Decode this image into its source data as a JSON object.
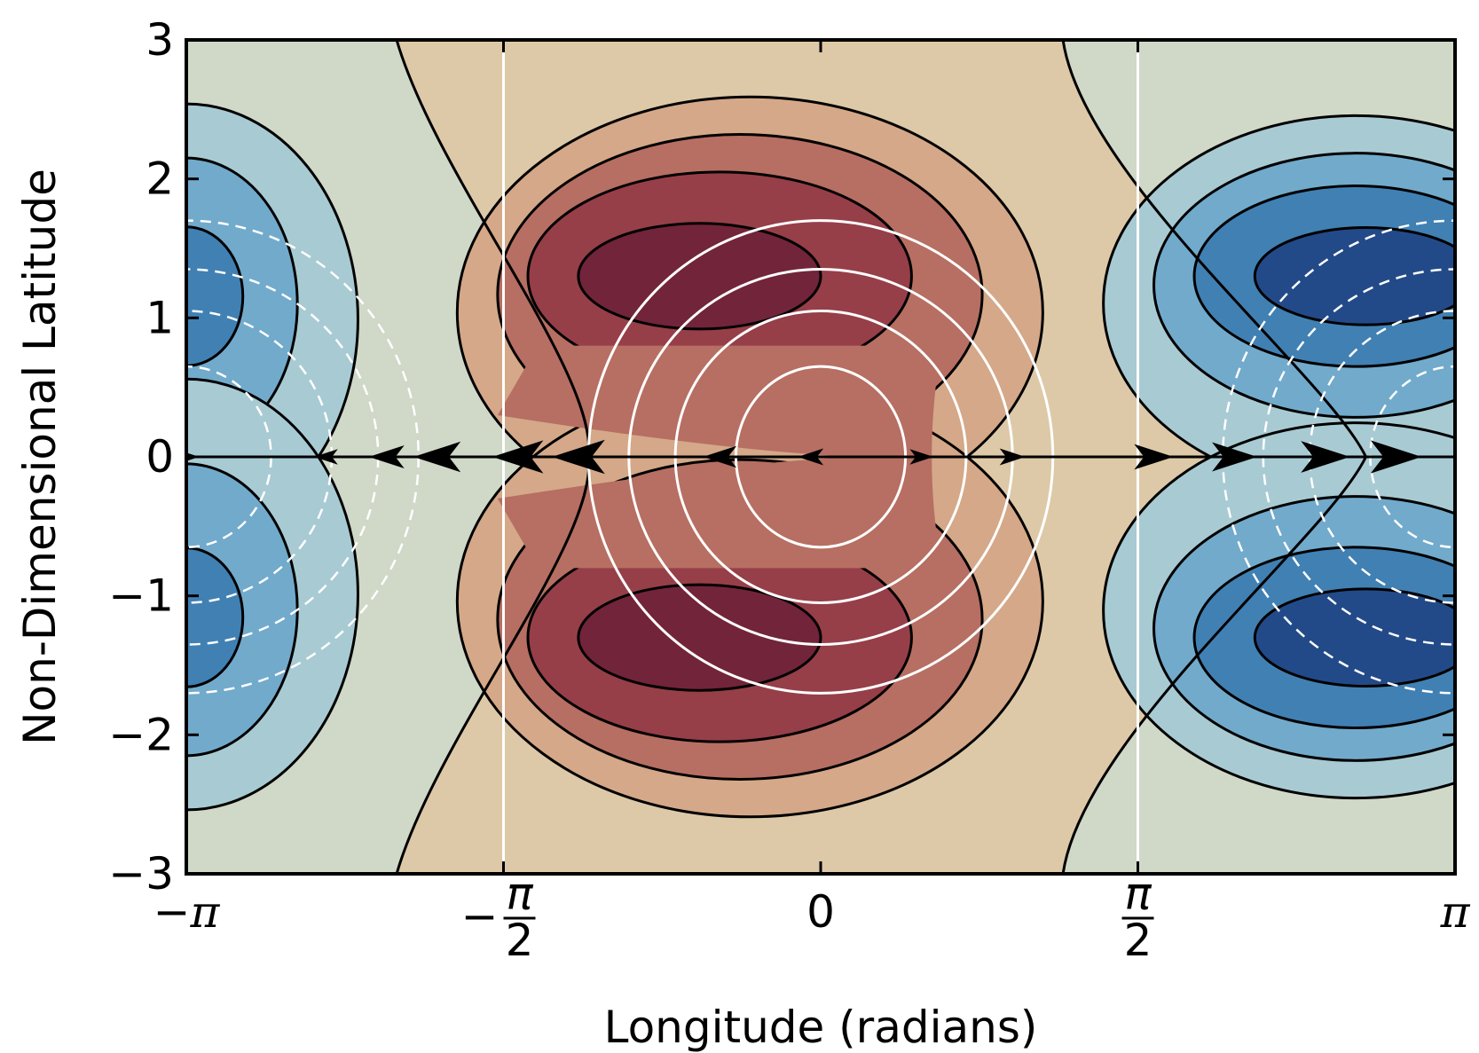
{
  "chart_data": {
    "type": "contour",
    "title": "",
    "xlabel": "Longitude (radians)",
    "ylabel": "Non-Dimensional Latitude",
    "xlim": [
      -3.14159,
      3.14159
    ],
    "ylim": [
      -3,
      3
    ],
    "x_ticks": [
      {
        "value": -3.14159,
        "label": "−π",
        "kind": "pi",
        "sign": "−"
      },
      {
        "value": -1.5708,
        "label": "−π/2",
        "kind": "frac",
        "sign": "−",
        "num": "π",
        "den": "2"
      },
      {
        "value": 0,
        "label": "0",
        "kind": "plain"
      },
      {
        "value": 1.5708,
        "label": "π/2",
        "kind": "frac",
        "sign": "",
        "num": "π",
        "den": "2"
      },
      {
        "value": 3.14159,
        "label": "π",
        "kind": "pi",
        "sign": ""
      }
    ],
    "y_ticks": [
      {
        "value": 3,
        "label": "3"
      },
      {
        "value": 2,
        "label": "2"
      },
      {
        "value": 1,
        "label": "1"
      },
      {
        "value": 0,
        "label": "0"
      },
      {
        "value": -1,
        "label": "−1"
      },
      {
        "value": -2,
        "label": "−2"
      },
      {
        "value": -3,
        "label": "−3"
      }
    ],
    "grid": false,
    "colormap": "diverging red-blue (RdYlBu reversed, muted)",
    "colors": {
      "background": "#d0d8c8",
      "neutral_positive": "#ddc9a8",
      "positive_levels": [
        "#ddc9a8",
        "#d4a888",
        "#b66f62",
        "#963f48",
        "#72243a"
      ],
      "negative_levels": [
        "#d0d8c8",
        "#a8cad3",
        "#72aacb",
        "#4180b3",
        "#234a88"
      ],
      "contour_line": "#000000",
      "overlay_line": "#ffffff"
    },
    "filled_contours": {
      "description": "Fourier-mode field ~ cos(longitude) with two off-equatorial extrema on each side",
      "max_centers": [
        {
          "x": -0.5,
          "y": 1.3
        },
        {
          "x": -0.5,
          "y": -1.3
        }
      ],
      "min_centers": [
        {
          "x": 2.65,
          "y": 1.3
        },
        {
          "x": 2.65,
          "y": -1.3
        },
        {
          "x": -3.14159,
          "y": 1.1
        },
        {
          "x": -3.14159,
          "y": -1.1
        }
      ]
    },
    "overlay_contours": {
      "description": "White closed contours: solid = positive, dashed = negative",
      "solid_center": {
        "x": 0,
        "y": 0
      },
      "dashed_center": {
        "x": 3.14159,
        "y": 0
      },
      "solid_levels_radii": [
        {
          "rx": 0.42,
          "ry": 0.65
        },
        {
          "rx": 0.72,
          "ry": 1.05
        },
        {
          "rx": 0.95,
          "ry": 1.35
        },
        {
          "rx": 1.15,
          "ry": 1.7
        }
      ]
    },
    "vertical_reference_lines": [
      -1.5708,
      1.5708
    ],
    "vector_field": {
      "description": "Quiver arrows: westward convergence toward x≈-1.2 near the equator, eastward flow for x>0.8",
      "equator_arrows": [
        {
          "x": -3.14159,
          "u": 0.5
        },
        {
          "x": -2.45,
          "u": -0.4
        },
        {
          "x": -2.15,
          "u": -1
        },
        {
          "x": -1.9,
          "u": -1.6
        },
        {
          "x": -1.5,
          "u": -1.8
        },
        {
          "x": -1.2,
          "u": -1.9
        },
        {
          "x": -0.5,
          "u": -0.9
        },
        {
          "x": -0.05,
          "u": -0.5
        },
        {
          "x": 0.5,
          "u": 0.4
        },
        {
          "x": 0.95,
          "u": 0.5
        },
        {
          "x": 1.65,
          "u": 1.2
        },
        {
          "x": 2.05,
          "u": 1.5
        },
        {
          "x": 2.5,
          "u": 1.7
        },
        {
          "x": 2.85,
          "u": 1.8
        }
      ]
    }
  }
}
